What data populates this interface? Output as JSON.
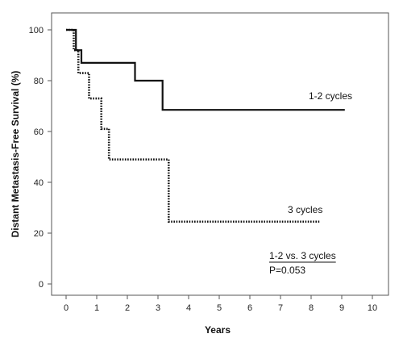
{
  "chart_data": {
    "type": "line",
    "step": true,
    "xlabel": "Years",
    "ylabel": "Distant Metastasis-Free Survival (%)",
    "xlim": [
      0,
      10
    ],
    "ylim": [
      0,
      100
    ],
    "x_ticks": [
      0,
      1,
      2,
      3,
      4,
      5,
      6,
      7,
      8,
      9,
      10
    ],
    "y_ticks": [
      0,
      20,
      40,
      60,
      80,
      100
    ],
    "grid": false,
    "series": [
      {
        "name": "1-2 cycles",
        "style": "solid",
        "x": [
          0,
          0.32,
          0.32,
          0.5,
          0.5,
          2.25,
          2.25,
          3.15,
          3.15,
          9.1
        ],
        "y": [
          100,
          100,
          92,
          92,
          87,
          87,
          80,
          80,
          68.5,
          68.5
        ]
      },
      {
        "name": "3 cycles",
        "style": "dotted",
        "x": [
          0,
          0.25,
          0.25,
          0.4,
          0.4,
          0.75,
          0.75,
          1.15,
          1.15,
          1.4,
          1.4,
          3.35,
          3.35,
          8.3
        ],
        "y": [
          100,
          100,
          92,
          92,
          83,
          83,
          73,
          73,
          61,
          61,
          49,
          49,
          24.5,
          24.5
        ]
      }
    ],
    "annotations": {
      "comparison": "1-2 vs. 3 cycles",
      "p_value": "P=0.053"
    }
  }
}
